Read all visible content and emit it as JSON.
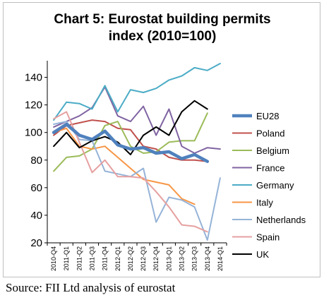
{
  "chart_data": {
    "type": "line",
    "title": "Chart 5: Eurostat building permits\nindex (2010=100)",
    "xlabel": "",
    "ylabel": "",
    "ylim": [
      20,
      150
    ],
    "yticks": [
      20,
      40,
      60,
      80,
      100,
      120,
      140
    ],
    "grid": false,
    "legend_position": "right",
    "categories": [
      "2010-Q4",
      "2011-Q1",
      "2011-Q2",
      "2011-Q3",
      "2011-Q4",
      "2012-Q1",
      "2012-Q2",
      "2012-Q3",
      "2012-Q4",
      "2013-Q1",
      "2013-Q2",
      "2013-Q3",
      "2013-Q4",
      "2014-Q1"
    ],
    "series": [
      {
        "name": "EU28",
        "color": "#4f81bd",
        "emphasis": true,
        "values": [
          100,
          106,
          98,
          95,
          101,
          91,
          88,
          89,
          85,
          86,
          81,
          84,
          79,
          null
        ]
      },
      {
        "name": "Poland",
        "color": "#c0504d",
        "values": [
          98,
          105,
          107,
          109,
          108,
          103,
          102,
          90,
          88,
          82,
          80,
          80,
          79,
          null
        ]
      },
      {
        "name": "Belgium",
        "color": "#9bbb59",
        "values": [
          72,
          82,
          83,
          88,
          105,
          108,
          90,
          85,
          86,
          93,
          94,
          94,
          114,
          null
        ]
      },
      {
        "name": "France",
        "color": "#8064a2",
        "values": [
          104,
          108,
          112,
          118,
          133,
          112,
          108,
          119,
          98,
          117,
          90,
          85,
          89,
          88
        ]
      },
      {
        "name": "Germany",
        "color": "#4bacc6",
        "values": [
          109,
          122,
          121,
          117,
          134,
          115,
          131,
          129,
          132,
          138,
          141,
          147,
          145,
          150
        ]
      },
      {
        "name": "Italy",
        "color": "#f79646",
        "values": [
          100,
          103,
          90,
          88,
          90,
          82,
          74,
          66,
          64,
          62,
          52,
          48,
          null,
          null
        ]
      },
      {
        "name": "Netherlands",
        "color": "#95b3d7",
        "values": [
          106,
          108,
          95,
          94,
          72,
          70,
          68,
          74,
          35,
          53,
          51,
          46,
          22,
          67
        ]
      },
      {
        "name": "Spain",
        "color": "#e6a0a0",
        "values": [
          110,
          115,
          93,
          71,
          80,
          68,
          68,
          67,
          57,
          46,
          33,
          32,
          28,
          null
        ]
      },
      {
        "name": "UK",
        "color": "#000000",
        "values": [
          90,
          100,
          89,
          94,
          97,
          93,
          84,
          98,
          104,
          98,
          115,
          123,
          117,
          null
        ]
      }
    ]
  },
  "source": "Source: FII Ltd analysis of eurostat"
}
